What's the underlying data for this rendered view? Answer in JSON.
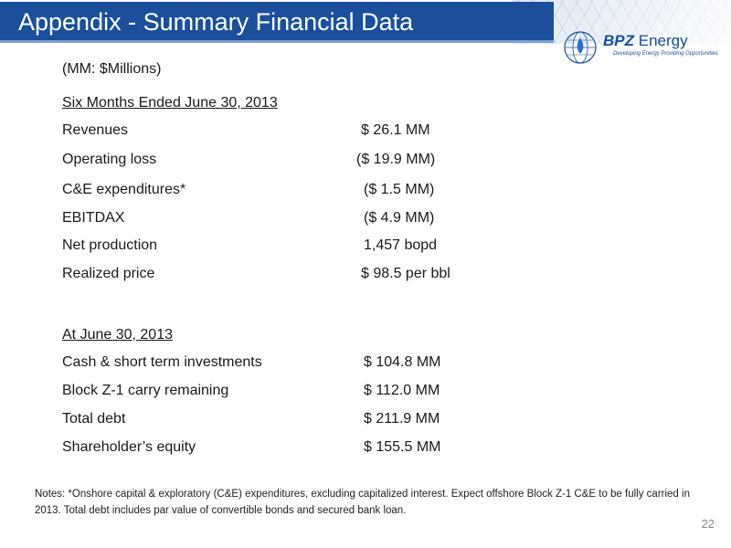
{
  "header": {
    "title": "Appendix - Summary Financial Data",
    "accent_color": "#1b4f9c"
  },
  "logo": {
    "name_bold": "BPZ",
    "name_light": "Energy",
    "tagline": "Developing Energy  Providing Opportunities"
  },
  "units_note": "(MM: $Millions)",
  "six_months": {
    "heading": "Six Months Ended June 30, 2013",
    "rows": [
      {
        "label": "Revenues",
        "value": "$ 26.1 MM"
      },
      {
        "label": "Operating loss",
        "value": "($ 19.9 MM)"
      },
      {
        "label": "C&E expenditures*",
        "value": "($ 1.5 MM)"
      },
      {
        "label": "EBITDAX",
        "value": "($ 4.9 MM)"
      },
      {
        "label": "Net production",
        "value": "1,457 bopd"
      },
      {
        "label": "Realized price",
        "value": "$ 98.5 per bbl"
      }
    ]
  },
  "at_june": {
    "heading": "At June 30, 2013",
    "rows": [
      {
        "label": "Cash & short term investments",
        "value": "$ 104.8 MM"
      },
      {
        "label": "Block Z-1 carry remaining",
        "value": "$ 112.0 MM"
      },
      {
        "label": "Total debt",
        "value": "$ 211.9 MM"
      },
      {
        "label": "Shareholder’s equity",
        "value": "$ 155.5 MM"
      }
    ]
  },
  "notes": "Notes: *Onshore capital & exploratory (C&E) expenditures, excluding capitalized interest.  Expect offshore  Block Z-1 C&E to be fully carried in 2013.  Total debt includes par value of convertible bonds and secured bank loan.",
  "page_number": "22"
}
